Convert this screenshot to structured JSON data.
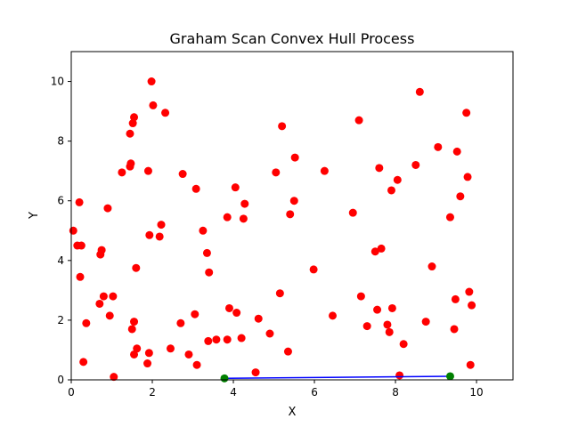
{
  "chart_data": {
    "type": "scatter",
    "title": "Graham Scan Convex Hull Process",
    "xlabel": "X",
    "ylabel": "Y",
    "xlim": [
      0,
      10.9
    ],
    "ylim": [
      0,
      11
    ],
    "xticks": [
      0,
      2,
      4,
      6,
      8,
      10
    ],
    "yticks": [
      0,
      2,
      4,
      6,
      8,
      10
    ],
    "grid": false,
    "colors": {
      "points": "#ff0000",
      "hull_points": "#008000",
      "hull_line": "#0000ff"
    },
    "points": [
      [
        0.05,
        5.0
      ],
      [
        0.15,
        4.5
      ],
      [
        0.2,
        5.95
      ],
      [
        0.22,
        3.45
      ],
      [
        0.25,
        4.5
      ],
      [
        0.3,
        0.6
      ],
      [
        0.37,
        1.9
      ],
      [
        0.7,
        2.55
      ],
      [
        0.72,
        4.2
      ],
      [
        0.75,
        4.35
      ],
      [
        0.8,
        2.8
      ],
      [
        0.9,
        5.75
      ],
      [
        0.95,
        2.15
      ],
      [
        1.03,
        2.8
      ],
      [
        1.05,
        0.1
      ],
      [
        1.25,
        6.95
      ],
      [
        1.45,
        8.25
      ],
      [
        1.45,
        7.15
      ],
      [
        1.47,
        7.25
      ],
      [
        1.5,
        1.7
      ],
      [
        1.52,
        8.6
      ],
      [
        1.55,
        8.8
      ],
      [
        1.55,
        0.85
      ],
      [
        1.55,
        1.95
      ],
      [
        1.6,
        3.75
      ],
      [
        1.62,
        1.05
      ],
      [
        1.88,
        0.55
      ],
      [
        1.9,
        7.0
      ],
      [
        1.92,
        0.9
      ],
      [
        1.93,
        4.85
      ],
      [
        1.98,
        10.0
      ],
      [
        2.02,
        9.2
      ],
      [
        2.18,
        4.8
      ],
      [
        2.22,
        5.2
      ],
      [
        2.32,
        8.95
      ],
      [
        2.45,
        1.05
      ],
      [
        2.7,
        1.9
      ],
      [
        2.75,
        6.9
      ],
      [
        2.9,
        0.85
      ],
      [
        3.05,
        2.2
      ],
      [
        3.08,
        6.4
      ],
      [
        3.1,
        0.5
      ],
      [
        3.25,
        5.0
      ],
      [
        3.35,
        4.25
      ],
      [
        3.38,
        1.3
      ],
      [
        3.4,
        3.6
      ],
      [
        3.58,
        1.35
      ],
      [
        3.85,
        5.45
      ],
      [
        3.85,
        1.35
      ],
      [
        3.9,
        2.4
      ],
      [
        4.05,
        6.45
      ],
      [
        4.08,
        2.25
      ],
      [
        4.2,
        1.4
      ],
      [
        4.25,
        5.4
      ],
      [
        4.28,
        5.9
      ],
      [
        4.55,
        0.25
      ],
      [
        4.62,
        2.05
      ],
      [
        4.9,
        1.55
      ],
      [
        5.05,
        6.95
      ],
      [
        5.15,
        2.9
      ],
      [
        5.2,
        8.5
      ],
      [
        5.35,
        0.95
      ],
      [
        5.4,
        5.55
      ],
      [
        5.5,
        6.0
      ],
      [
        5.52,
        7.45
      ],
      [
        5.98,
        3.7
      ],
      [
        6.25,
        7.0
      ],
      [
        6.45,
        2.15
      ],
      [
        6.95,
        5.6
      ],
      [
        7.1,
        8.7
      ],
      [
        7.15,
        2.8
      ],
      [
        7.3,
        1.8
      ],
      [
        7.5,
        4.3
      ],
      [
        7.55,
        2.35
      ],
      [
        7.6,
        7.1
      ],
      [
        7.65,
        4.4
      ],
      [
        7.8,
        1.85
      ],
      [
        7.85,
        1.6
      ],
      [
        7.9,
        6.35
      ],
      [
        7.92,
        2.4
      ],
      [
        8.05,
        6.7
      ],
      [
        8.1,
        0.15
      ],
      [
        8.2,
        1.2
      ],
      [
        8.5,
        7.2
      ],
      [
        8.6,
        9.65
      ],
      [
        8.75,
        1.95
      ],
      [
        8.9,
        3.8
      ],
      [
        9.05,
        7.8
      ],
      [
        9.35,
        5.45
      ],
      [
        9.45,
        1.7
      ],
      [
        9.48,
        2.7
      ],
      [
        9.52,
        7.65
      ],
      [
        9.6,
        6.15
      ],
      [
        9.75,
        8.95
      ],
      [
        9.78,
        6.8
      ],
      [
        9.82,
        2.95
      ],
      [
        9.85,
        0.5
      ],
      [
        9.88,
        2.5
      ]
    ],
    "hull_points": [
      [
        3.78,
        0.05
      ],
      [
        9.35,
        0.12
      ]
    ],
    "hull_edges": [
      [
        [
          3.78,
          0.05
        ],
        [
          9.35,
          0.12
        ]
      ]
    ]
  }
}
